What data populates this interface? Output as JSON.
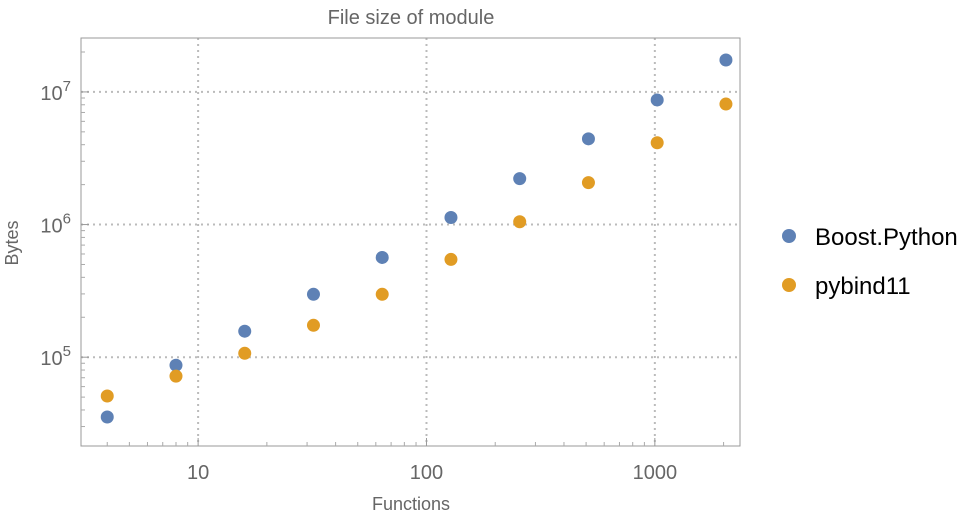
{
  "chart_data": {
    "type": "scatter",
    "title": "File size of module",
    "xlabel": "Functions",
    "ylabel": "Bytes",
    "xscale": "log",
    "yscale": "log",
    "xlim": [
      3.07,
      2360
    ],
    "ylim": [
      21400,
      25500000
    ],
    "grid": true,
    "legend_position": "right",
    "x_ticks": [
      {
        "value": 10,
        "label": "10"
      },
      {
        "value": 100,
        "label": "100"
      },
      {
        "value": 1000,
        "label": "1000"
      }
    ],
    "y_ticks": [
      {
        "value": 100000,
        "base": "10",
        "exp": "5"
      },
      {
        "value": 1000000,
        "base": "10",
        "exp": "6"
      },
      {
        "value": 10000000,
        "base": "10",
        "exp": "7"
      }
    ],
    "x": [
      4,
      8,
      16,
      32,
      64,
      128,
      256,
      512,
      1024,
      2048
    ],
    "series": [
      {
        "name": "Boost.Python",
        "color": "#5E81B5",
        "values": [
          35400,
          87000,
          157000,
          298000,
          565000,
          1130000,
          2220000,
          4430000,
          8700000,
          17400000
        ]
      },
      {
        "name": "pybind11",
        "color": "#E19C24",
        "values": [
          51000,
          72000,
          107000,
          174000,
          298000,
          546000,
          1050000,
          2070000,
          4140000,
          8100000
        ]
      }
    ]
  }
}
